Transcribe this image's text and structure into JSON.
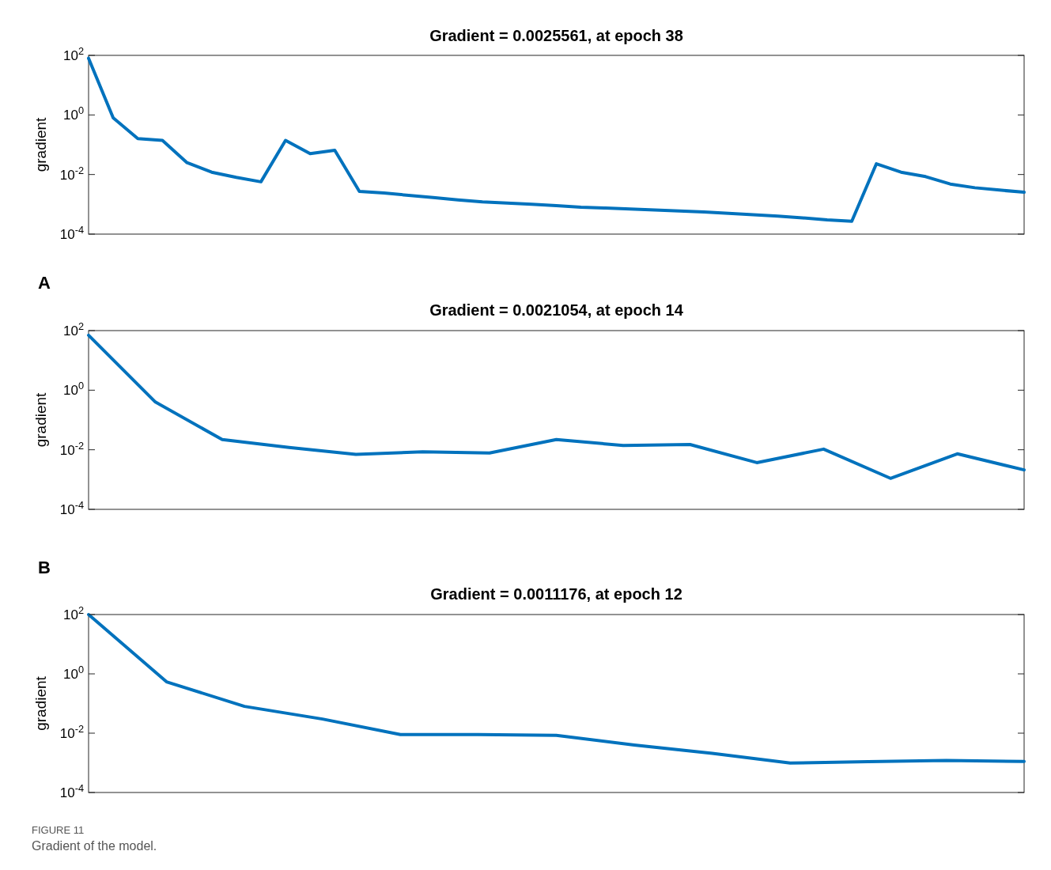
{
  "chart_data": [
    {
      "type": "line",
      "title": "Gradient = 0.0025561, at epoch 38",
      "ylabel": "gradient",
      "log": "y",
      "annotations": [
        "A"
      ],
      "categories": [
        null,
        null,
        null,
        null,
        null,
        null,
        null,
        null,
        null,
        null,
        null,
        null,
        null,
        null,
        null,
        null,
        null,
        null,
        null,
        null,
        null,
        null,
        null,
        null,
        null,
        null,
        null,
        null,
        null,
        null,
        null,
        null,
        null,
        null,
        null,
        null,
        null,
        null,
        null
      ],
      "ylim": [
        0.0001,
        100
      ],
      "yticks": [
        {
          "value": 0.0001,
          "label": "10$^{-4}$"
        },
        {
          "value": 0.01,
          "label": "10$^{-2}$"
        },
        {
          "value": 1,
          "label": "10$^{0}$"
        },
        {
          "value": 100,
          "label": "10$^{2}$"
        }
      ],
      "series": [
        {
          "color": "#0072bd",
          "values": [
            80,
            0.8,
            0.16,
            0.14,
            0.025,
            0.012,
            0.008,
            0.0057,
            0.14,
            0.05,
            0.065,
            0.0027,
            0.0024,
            0.002,
            0.0017,
            0.0014,
            0.0012,
            0.0011,
            0.001,
            0.0009,
            0.0008,
            0.00075,
            0.0007,
            0.00065,
            0.0006,
            0.00055,
            0.0005,
            0.00045,
            0.0004,
            0.00035,
            0.0003,
            0.00027,
            0.023,
            0.012,
            0.0085,
            0.0048,
            0.0036,
            0.003,
            0.0025561
          ]
        }
      ]
    },
    {
      "type": "line",
      "title": "Gradient = 0.0021054, at epoch 14",
      "ylabel": "gradient",
      "log": "y",
      "annotations": [
        "B"
      ],
      "categories": [
        null,
        null,
        null,
        null,
        null,
        null,
        null,
        null,
        null,
        null,
        null,
        null,
        null,
        null,
        null
      ],
      "ylim": [
        0.0001,
        100
      ],
      "yticks": [
        {
          "value": 0.0001,
          "label": "10$^{-4}$"
        },
        {
          "value": 0.01,
          "label": "10$^{-2}$"
        },
        {
          "value": 1,
          "label": "10$^{0}$"
        },
        {
          "value": 100,
          "label": "10$^{2}$"
        }
      ],
      "series": [
        {
          "color": "#0072bd",
          "values": [
            70,
            0.4,
            0.022,
            0.012,
            0.007,
            0.0085,
            0.0078,
            0.022,
            0.014,
            0.015,
            0.0037,
            0.0105,
            0.0011,
            0.0073,
            0.0021054
          ]
        }
      ]
    },
    {
      "type": "line",
      "title": "Gradient = 0.0011176, at epoch 12",
      "ylabel": "gradient",
      "log": "y",
      "annotations": [
        "FIGURE 11",
        "Gradient of the model."
      ],
      "categories": [
        null,
        null,
        null,
        null,
        null,
        null,
        null,
        null,
        null,
        null,
        null,
        null,
        null
      ],
      "ylim": [
        0.0001,
        100
      ],
      "yticks": [
        {
          "value": 0.0001,
          "label": "10$^{-4}$"
        },
        {
          "value": 0.01,
          "label": "10$^{-2}$"
        },
        {
          "value": 1,
          "label": "10$^{0}$"
        },
        {
          "value": 100,
          "label": "10$^{2}$"
        }
      ],
      "series": [
        {
          "color": "#0072bd",
          "values": [
            100,
            0.54,
            0.08,
            0.03,
            0.009,
            0.009,
            0.0085,
            0.004,
            0.0021,
            0.00098,
            0.0011,
            0.0012,
            0.0011176
          ]
        }
      ]
    }
  ]
}
